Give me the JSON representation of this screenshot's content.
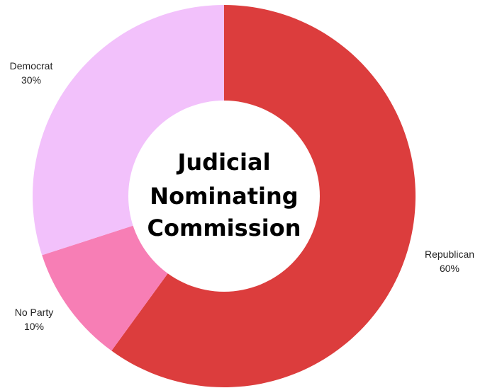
{
  "chart_data": {
    "type": "pie",
    "title": "Judicial Nominating Commission",
    "title_lines": [
      "Judicial",
      "Nominating",
      "Commission"
    ],
    "style": "donut",
    "start": "12 o'clock",
    "direction": "clockwise",
    "slices": [
      {
        "label": "Republican",
        "value": 60,
        "value_label": "60%",
        "color": "#dc3d3d"
      },
      {
        "label": "No Party",
        "value": 10,
        "value_label": "10%",
        "color": "#f77eb5"
      },
      {
        "label": "Democrat",
        "value": 30,
        "value_label": "30%",
        "color": "#f2c1fb"
      }
    ]
  }
}
